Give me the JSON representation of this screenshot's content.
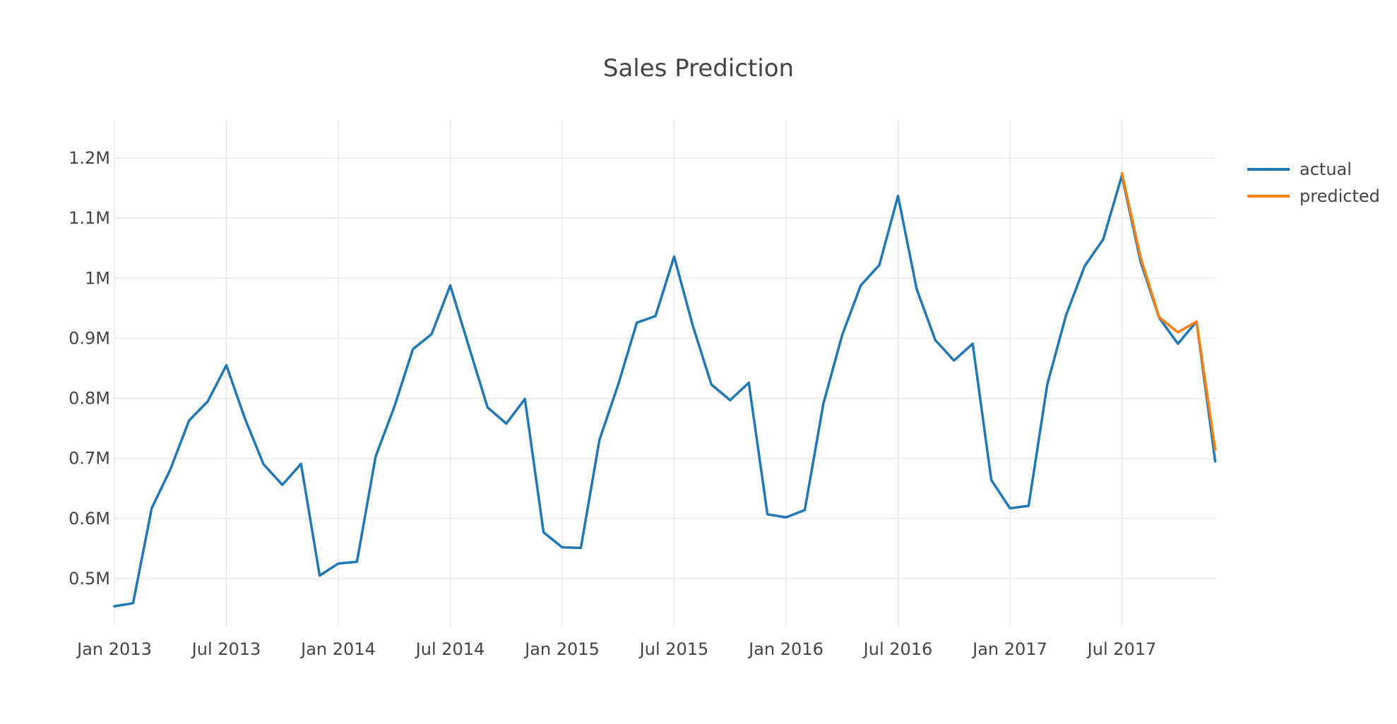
{
  "chart_data": {
    "type": "line",
    "title": "Sales Prediction",
    "xlabel": "",
    "ylabel": "",
    "x_start": "2013-01",
    "x_range": [
      "2013-01",
      "2017-12"
    ],
    "x_ticks": [
      "Jan 2013",
      "Jul 2013",
      "Jan 2014",
      "Jul 2014",
      "Jan 2015",
      "Jul 2015",
      "Jan 2016",
      "Jul 2016",
      "Jan 2017",
      "Jul 2017"
    ],
    "y_ticks": [
      "0.5M",
      "0.6M",
      "0.7M",
      "0.8M",
      "0.9M",
      "1M",
      "1.1M",
      "1.2M"
    ],
    "ylim": [
      420000,
      1240000
    ],
    "grid": true,
    "legend_position": "top-right",
    "series": [
      {
        "name": "actual",
        "color": "#1f77b4",
        "x": [
          "2013-01",
          "2013-02",
          "2013-03",
          "2013-04",
          "2013-05",
          "2013-06",
          "2013-07",
          "2013-08",
          "2013-09",
          "2013-10",
          "2013-11",
          "2013-12",
          "2014-01",
          "2014-02",
          "2014-03",
          "2014-04",
          "2014-05",
          "2014-06",
          "2014-07",
          "2014-08",
          "2014-09",
          "2014-10",
          "2014-11",
          "2014-12",
          "2015-01",
          "2015-02",
          "2015-03",
          "2015-04",
          "2015-05",
          "2015-06",
          "2015-07",
          "2015-08",
          "2015-09",
          "2015-10",
          "2015-11",
          "2015-12",
          "2016-01",
          "2016-02",
          "2016-03",
          "2016-04",
          "2016-05",
          "2016-06",
          "2016-07",
          "2016-08",
          "2016-09",
          "2016-10",
          "2016-11",
          "2016-12",
          "2017-01",
          "2017-02",
          "2017-03",
          "2017-04",
          "2017-05",
          "2017-06",
          "2017-07",
          "2017-08",
          "2017-09",
          "2017-10",
          "2017-11",
          "2017-12"
        ],
        "values": [
          454000,
          459000,
          617000,
          682000,
          763000,
          795000,
          855000,
          766000,
          690000,
          656000,
          691000,
          505000,
          525000,
          528000,
          703000,
          786000,
          882000,
          907000,
          988000,
          886000,
          785000,
          758000,
          799000,
          577000,
          552000,
          551000,
          731000,
          823000,
          926000,
          937000,
          1036000,
          921000,
          823000,
          797000,
          826000,
          607000,
          602000,
          614000,
          791000,
          905000,
          988000,
          1022000,
          1137000,
          982000,
          897000,
          863000,
          891000,
          664000,
          617000,
          621000,
          823000,
          938000,
          1020000,
          1065000,
          1171000,
          1028000,
          934000,
          891000,
          928000,
          695000
        ]
      },
      {
        "name": "predicted",
        "color": "#ff7f0e",
        "x": [
          "2017-07",
          "2017-08",
          "2017-09",
          "2017-10",
          "2017-11",
          "2017-12"
        ],
        "values": [
          1175000,
          1035000,
          935000,
          910000,
          928000,
          715000
        ]
      }
    ]
  }
}
